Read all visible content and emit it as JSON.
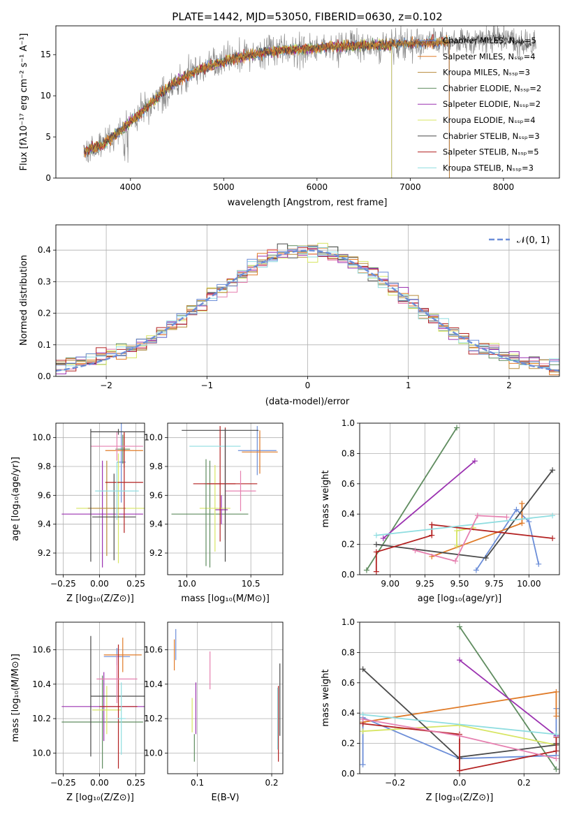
{
  "title": "PLATE=1442, MJD=53050, FIBERID=0630, z=0.102",
  "colors": [
    "#6c8ed8",
    "#e07b28",
    "#b78a3a",
    "#5f8c5f",
    "#9b31b0",
    "#d7e562",
    "#4a4a4a",
    "#b32020",
    "#8fdde0",
    "#e680b0",
    "#8a8a8a"
  ],
  "panels": {
    "spectrum": {
      "xlabel": "wavelength [Angstrom, rest frame]",
      "ylabel": "Flux [fλ10⁻¹⁷ erg cm⁻² s⁻¹ A⁻¹]",
      "xticks": [
        "4000",
        "5000",
        "6000",
        "7000",
        "8000"
      ],
      "yticks": [
        "0",
        "5",
        "10",
        "15"
      ],
      "xlim": [
        3200,
        8600
      ],
      "ylim": [
        0,
        18.5
      ],
      "legend": [
        "Chabrier MILES, Nₛₛₚ=5",
        "Salpeter MILES, Nₛₛₚ=4",
        "Kroupa MILES, Nₛₛₚ=3",
        "Chabrier ELODIE, Nₛₛₚ=2",
        "Salpeter ELODIE, Nₛₛₚ=2",
        "Kroupa ELODIE, Nₛₛₚ=4",
        "Chabrier STELIB, Nₛₛₚ=3",
        "Salpeter STELIB, Nₛₛₚ=5",
        "Kroupa STELIB, Nₛₛₚ=3"
      ],
      "legend_placement": "upper-right"
    },
    "hist": {
      "xlabel": "(data-model)/error",
      "ylabel": "Normed distribution",
      "xticks": [
        "−2",
        "−1",
        "0",
        "1",
        "2"
      ],
      "yticks": [
        "0.0",
        "0.1",
        "0.2",
        "0.3",
        "0.4"
      ],
      "xlim": [
        -2.5,
        2.5
      ],
      "ylim": [
        0,
        0.48
      ],
      "legend": "𝒩(0, 1)",
      "legend_placement": "upper-right"
    },
    "age_z": {
      "xlabel": "Z [log₁₀(Z/Z⊙)]",
      "ylabel": "age  [log₁₀(age/yr)]",
      "xticks": [
        "−0.25",
        "0.00",
        "0.25"
      ],
      "yticks": [
        "9.2",
        "9.4",
        "9.6",
        "9.8",
        "10.0"
      ]
    },
    "age_mass": {
      "xlabel": "mass [log₁₀(M/M⊙)]",
      "xticks": [
        "10.0",
        "10.5"
      ],
      "yticks": [
        "9.2",
        "9.4",
        "9.6",
        "9.8",
        "10.0"
      ]
    },
    "mw_age": {
      "xlabel": "age  [log₁₀(age/yr)]",
      "ylabel": "mass weight",
      "xticks": [
        "9.00",
        "9.25",
        "9.50",
        "9.75",
        "10.00"
      ],
      "yticks": [
        "0.0",
        "0.2",
        "0.4",
        "0.6",
        "0.8",
        "1.0"
      ]
    },
    "mass_z": {
      "xlabel": "Z [log₁₀(Z/Z⊙)]",
      "ylabel": "mass [log₁₀(M/M⊙)]",
      "xticks": [
        "−0.25",
        "0.00",
        "0.25"
      ],
      "yticks": [
        "10.0",
        "10.2",
        "10.4",
        "10.6"
      ]
    },
    "mass_ebv": {
      "xlabel": "E(B-V)",
      "xticks": [
        "0.1",
        "0.2"
      ],
      "yticks": [
        "10.0",
        "10.2",
        "10.4",
        "10.6"
      ]
    },
    "mw_z": {
      "xlabel": "Z [log₁₀(Z/Z⊙)]",
      "ylabel": "mass weight",
      "xticks": [
        "−0.2",
        "0.0",
        "0.2"
      ],
      "yticks": [
        "0.0",
        "0.2",
        "0.4",
        "0.6",
        "0.8",
        "1.0"
      ]
    }
  },
  "chart_data": [
    {
      "type": "line",
      "title": "PLATE=1442, MJD=53050, FIBERID=0630, z=0.102",
      "xlabel": "wavelength [Angstrom, rest frame]",
      "ylabel": "Flux [fλ10⁻¹⁷ erg cm⁻² s⁻¹ A⁻¹]",
      "xlim": [
        3200,
        8600
      ],
      "ylim": [
        0,
        18.5
      ],
      "grid": false,
      "continuum": {
        "x": [
          3500,
          3700,
          3900,
          4100,
          4300,
          4500,
          4700,
          4900,
          5100,
          5300,
          5500,
          5700,
          5900,
          6100,
          6300,
          6500,
          6700,
          6900,
          7100,
          7300,
          7500,
          7700,
          7900,
          8100,
          8300
        ],
        "y": [
          3.3,
          4.0,
          5.8,
          7.8,
          10.0,
          11.8,
          13.0,
          13.8,
          14.5,
          15.0,
          15.4,
          15.6,
          15.7,
          15.9,
          16.0,
          16.1,
          16.2,
          16.3,
          16.4,
          16.5,
          16.7,
          16.8,
          17.0,
          16.7,
          16.3
        ]
      },
      "series": [
        {
          "name": "Chabrier MILES, N_SSP=5",
          "x_range": [
            3500,
            7420
          ]
        },
        {
          "name": "Salpeter MILES, N_SSP=4",
          "x_range": [
            3500,
            7420
          ]
        },
        {
          "name": "Kroupa MILES, N_SSP=3",
          "x_range": [
            3500,
            7420
          ]
        },
        {
          "name": "Chabrier ELODIE, N_SSP=2",
          "x_range": [
            3500,
            6800
          ]
        },
        {
          "name": "Salpeter ELODIE, N_SSP=2",
          "x_range": [
            3500,
            6800
          ]
        },
        {
          "name": "Kroupa ELODIE, N_SSP=4",
          "x_range": [
            3500,
            6800
          ]
        },
        {
          "name": "Chabrier STELIB, N_SSP=3",
          "x_range": [
            3500,
            8300
          ]
        },
        {
          "name": "Salpeter STELIB, N_SSP=5",
          "x_range": [
            3500,
            7420
          ]
        },
        {
          "name": "Kroupa STELIB, N_SSP=3",
          "x_range": [
            3500,
            7420
          ]
        }
      ]
    },
    {
      "type": "bar",
      "xlabel": "(data-model)/error",
      "ylabel": "Normed distribution",
      "xlim": [
        -2.5,
        2.5
      ],
      "ylim": [
        0,
        0.48
      ],
      "grid": true,
      "bin_width": 0.1,
      "reference_curve": {
        "name": "𝒩(0, 1)",
        "mean": 0,
        "sigma": 1
      }
    },
    {
      "type": "scatter",
      "name": "age vs Z",
      "xlabel": "Z [log₁₀(Z/Z⊙)]",
      "ylabel": "age  [log₁₀(age/yr)]",
      "xlim": [
        -0.3,
        0.31
      ],
      "ylim": [
        9.05,
        10.1
      ],
      "grid": true,
      "points": [
        {
          "x": 0.15,
          "y": 9.83,
          "xerr": 0.03,
          "yerr": 0.28
        },
        {
          "x": 0.17,
          "y": 9.91,
          "xerr": 0.13,
          "yerr": 0.12
        },
        {
          "x": 0.16,
          "y": 9.92,
          "xerr": 0.05,
          "yerr": 0.1
        },
        {
          "x": 0.02,
          "y": 9.47,
          "xerr": 0.28,
          "yerr": 0.37
        },
        {
          "x": 0.13,
          "y": 9.51,
          "xerr": 0.29,
          "yerr": 0.38
        },
        {
          "x": 0.05,
          "y": 9.51,
          "xerr": 0.13,
          "yerr": 0.33
        },
        {
          "x": 0.1,
          "y": 9.45,
          "xerr": 0.15,
          "yerr": 0.3
        },
        {
          "x": 0.17,
          "y": 9.69,
          "xerr": 0.13,
          "yerr": 0.35
        },
        {
          "x": 0.12,
          "y": 9.94,
          "xerr": 0.18,
          "yerr": 0.1
        },
        {
          "x": 0.12,
          "y": 9.63,
          "xerr": 0.15,
          "yerr": 0.2
        },
        {
          "x": -0.06,
          "y": 9.6,
          "xerr": 0.0,
          "yerr": 0.46
        },
        {
          "x": 0.13,
          "y": 10.04,
          "xerr": 0.19,
          "yerr": 0.02
        }
      ]
    },
    {
      "type": "scatter",
      "name": "age vs mass",
      "xlabel": "mass [log₁₀(M/M⊙)]",
      "xlim": [
        9.85,
        10.75
      ],
      "ylim": [
        9.05,
        10.1
      ],
      "grid": true,
      "points": [
        {
          "x": 10.55,
          "y": 9.91,
          "xerr": 0.15,
          "yerr": 0.17
        },
        {
          "x": 10.57,
          "y": 9.9,
          "xerr": 0.14,
          "yerr": 0.15
        },
        {
          "x": 10.3,
          "y": 9.68,
          "xerr": 0.25,
          "yerr": 0.39
        },
        {
          "x": 10.18,
          "y": 9.47,
          "xerr": 0.3,
          "yerr": 0.37
        },
        {
          "x": 10.27,
          "y": 9.5,
          "xerr": 0.05,
          "yerr": 0.1
        },
        {
          "x": 10.22,
          "y": 9.51,
          "xerr": 0.12,
          "yerr": 0.3
        },
        {
          "x": 10.26,
          "y": 10.05,
          "xerr": 0.3,
          "yerr": 0.0
        },
        {
          "x": 10.26,
          "y": 9.68,
          "xerr": 0.12,
          "yerr": 0.4
        },
        {
          "x": 10.42,
          "y": 9.63,
          "xerr": 0.12,
          "yerr": 0.14
        },
        {
          "x": 10.22,
          "y": 9.94,
          "xerr": 0.2,
          "yerr": 0.0
        },
        {
          "x": 10.3,
          "y": 9.6,
          "xerr": 0.0,
          "yerr": 0.46
        },
        {
          "x": 10.15,
          "y": 9.48,
          "xerr": 0.0,
          "yerr": 0.37
        }
      ]
    },
    {
      "type": "line",
      "name": "mass weight vs age",
      "xlabel": "age  [log₁₀(age/yr)]",
      "ylabel": "mass weight",
      "xlim": [
        8.78,
        10.22
      ],
      "ylim": [
        0,
        1.0
      ],
      "grid": true,
      "series": [
        {
          "x": [
            9.62,
            9.91,
            10.0,
            10.07
          ],
          "y": [
            0.03,
            0.43,
            0.35,
            0.07
          ]
        },
        {
          "x": [
            9.3,
            9.95,
            9.95
          ],
          "y": [
            0.12,
            0.34,
            0.47
          ]
        },
        {
          "x": [
            8.83,
            9.48
          ],
          "y": [
            0.03,
            0.97
          ]
        },
        {
          "x": [
            8.95,
            9.61
          ],
          "y": [
            0.24,
            0.75
          ]
        },
        {
          "x": [
            9.48,
            9.48,
            9.6
          ],
          "y": [
            0.19,
            0.29,
            0.31
          ]
        },
        {
          "x": [
            8.9,
            9.69,
            10.17
          ],
          "y": [
            0.2,
            0.11,
            0.69
          ]
        },
        {
          "x": [
            8.9,
            8.9,
            9.3,
            9.3,
            10.17
          ],
          "y": [
            0.02,
            0.15,
            0.26,
            0.33,
            0.24
          ]
        },
        {
          "x": [
            8.9,
            10.17
          ],
          "y": [
            0.26,
            0.39
          ]
        },
        {
          "x": [
            9.18,
            9.47,
            9.63,
            9.84
          ],
          "y": [
            0.16,
            0.09,
            0.39,
            0.38
          ]
        }
      ]
    },
    {
      "type": "scatter",
      "name": "mass vs Z",
      "xlabel": "Z [log₁₀(Z/Z⊙)]",
      "ylabel": "mass [log₁₀(M/M⊙)]",
      "xlim": [
        -0.3,
        0.31
      ],
      "ylim": [
        9.88,
        10.76
      ],
      "grid": true,
      "points": [
        {
          "x": 0.12,
          "y": 10.56,
          "xerr": 0.09,
          "yerr": 0.05
        },
        {
          "x": 0.16,
          "y": 10.57,
          "xerr": 0.13,
          "yerr": 0.1
        },
        {
          "x": 0.02,
          "y": 10.18,
          "xerr": 0.28,
          "yerr": 0.27
        },
        {
          "x": 0.03,
          "y": 10.27,
          "xerr": 0.29,
          "yerr": 0.2
        },
        {
          "x": 0.05,
          "y": 10.25,
          "xerr": 0.1,
          "yerr": 0.14
        },
        {
          "x": -0.06,
          "y": 10.33,
          "xerr": 0.0,
          "yerr": 0.35
        },
        {
          "x": 0.13,
          "y": 10.33,
          "xerr": 0.19,
          "yerr": 0.0
        },
        {
          "x": 0.13,
          "y": 10.27,
          "xerr": 0.13,
          "yerr": 0.36
        },
        {
          "x": 0.12,
          "y": 10.43,
          "xerr": 0.14,
          "yerr": 0.14
        },
        {
          "x": 0.15,
          "y": 10.2,
          "xerr": 0.03,
          "yerr": 0.21
        }
      ]
    },
    {
      "type": "scatter",
      "name": "mass vs E(B-V)",
      "xlabel": "E(B-V)",
      "xlim": [
        0.06,
        0.215
      ],
      "ylim": [
        9.88,
        10.76
      ],
      "grid": true,
      "points": [
        {
          "x": 0.071,
          "y": 10.63,
          "yerr": 0.09
        },
        {
          "x": 0.069,
          "y": 10.57,
          "yerr": 0.09
        },
        {
          "x": 0.093,
          "y": 10.22,
          "yerr": 0.1
        },
        {
          "x": 0.098,
          "y": 10.26,
          "yerr": 0.15
        },
        {
          "x": 0.096,
          "y": 10.03,
          "yerr": 0.08
        },
        {
          "x": 0.117,
          "y": 10.48,
          "yerr": 0.11
        },
        {
          "x": 0.209,
          "y": 10.17,
          "yerr": 0.22
        },
        {
          "x": 0.211,
          "y": 10.31,
          "yerr": 0.21
        },
        {
          "x": 0.208,
          "y": 10.2,
          "yerr": 0.18
        }
      ]
    },
    {
      "type": "line",
      "name": "mass weight vs Z",
      "xlabel": "Z [log₁₀(Z/Z⊙)]",
      "ylabel": "mass weight",
      "xlim": [
        -0.31,
        0.31
      ],
      "ylim": [
        0,
        1.0
      ],
      "grid": true,
      "series": [
        {
          "x": [
            -0.3,
            -0.3,
            0.0,
            0.3,
            0.3
          ],
          "y": [
            0.06,
            0.37,
            0.1,
            0.12,
            0.43
          ]
        },
        {
          "x": [
            -0.3,
            0.3,
            0.3
          ],
          "y": [
            0.34,
            0.54,
            0.38
          ]
        },
        {
          "x": [
            0.0,
            0.3
          ],
          "y": [
            0.97,
            0.03
          ]
        },
        {
          "x": [
            0.0,
            0.3
          ],
          "y": [
            0.75,
            0.25
          ]
        },
        {
          "x": [
            -0.3,
            0.0,
            0.3
          ],
          "y": [
            0.28,
            0.32,
            0.19
          ]
        },
        {
          "x": [
            -0.3,
            0.0,
            0.0,
            0.3,
            0.3
          ],
          "y": [
            0.69,
            0.1,
            0.11,
            0.19,
            0.2
          ]
        },
        {
          "x": [
            -0.3,
            0.0,
            0.0,
            0.3,
            0.3
          ],
          "y": [
            0.33,
            0.26,
            0.02,
            0.15,
            0.24
          ]
        },
        {
          "x": [
            -0.3,
            0.3
          ],
          "y": [
            0.39,
            0.26
          ]
        },
        {
          "x": [
            -0.3,
            0.0,
            0.3
          ],
          "y": [
            0.36,
            0.25,
            0.1
          ]
        }
      ]
    }
  ]
}
